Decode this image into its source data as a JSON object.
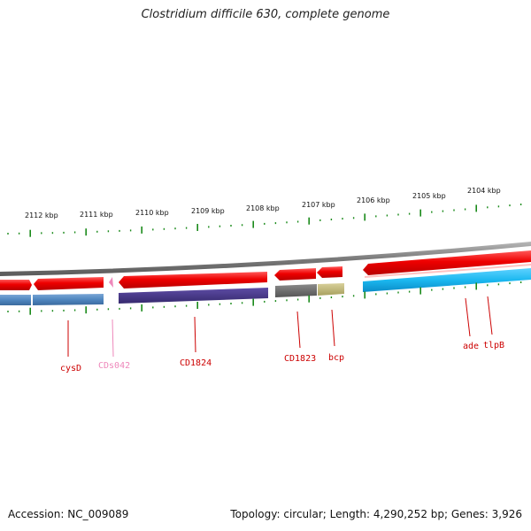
{
  "title": "Clostridium difficile 630, complete genome",
  "footer": {
    "accession": "Accession: NC_009089",
    "summary": "Topology: circular; Length: 4,290,252 bp; Genes: 3,926"
  },
  "scale_labels": [
    "2112 kbp",
    "2111 kbp",
    "2110 kbp",
    "2109 kbp",
    "2108 kbp",
    "2107 kbp",
    "2106 kbp",
    "2105 kbp",
    "2104 kbp"
  ],
  "gene_labels": [
    {
      "text": "cysD",
      "color": "#cc0000"
    },
    {
      "text": "CDs042",
      "color": "#ee88bb"
    },
    {
      "text": "CD1824",
      "color": "#cc0000"
    },
    {
      "text": "CD1823",
      "color": "#cc0000"
    },
    {
      "text": "bcp",
      "color": "#cc0000"
    },
    {
      "text": "ade",
      "color": "#cc0000"
    },
    {
      "text": "tlpB",
      "color": "#cc0000"
    }
  ],
  "colors": {
    "backbone": "#8a8a8a",
    "forward_gene": "#ee0000",
    "scale_ticks": "#1a8a1a",
    "cds_steelblue": "#4f86bf",
    "cds_purple": "#4b3a8c",
    "cds_gray": "#6b6b6b",
    "cds_olive": "#c8c080",
    "cds_cyan": "#1cb8f0",
    "pseudo_pink": "#ee88bb"
  }
}
